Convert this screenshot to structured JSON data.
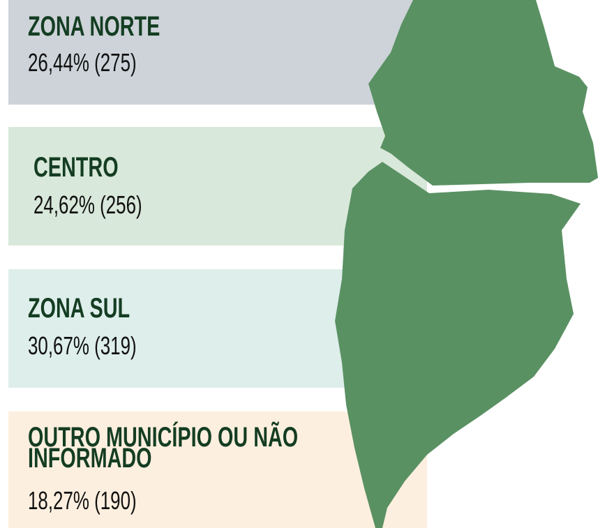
{
  "regions": [
    {
      "name": "ZONA NORTE",
      "stat": "26,44% (275)"
    },
    {
      "name": "CENTRO",
      "stat": "24,62% (256)"
    },
    {
      "name": "ZONA SUL",
      "stat": "30,67% (319)"
    },
    {
      "name": "OUTRO MUNICÍPIO OU NÃO INFORMADO",
      "stat": "18,27% (190)"
    }
  ]
}
